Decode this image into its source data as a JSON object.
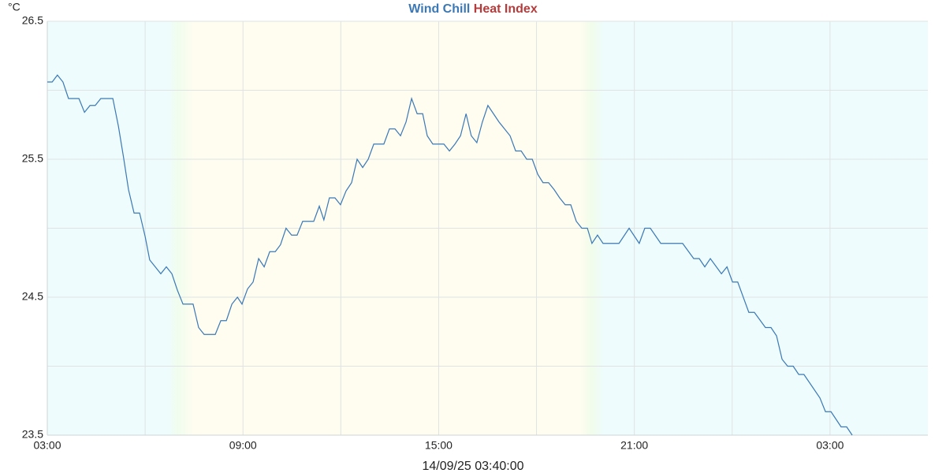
{
  "chart_data": {
    "type": "line",
    "y_unit": "°C",
    "footer": "14/09/25 03:40:00",
    "xlim": [
      0,
      27
    ],
    "xticks": [
      {
        "value": 0,
        "label": "03:00"
      },
      {
        "value": 6,
        "label": "09:00"
      },
      {
        "value": 12,
        "label": "15:00"
      },
      {
        "value": 18,
        "label": "21:00"
      },
      {
        "value": 24,
        "label": "03:00"
      }
    ],
    "minor_xticks": [
      3,
      9,
      15,
      21
    ],
    "ylim": [
      23.5,
      26.5
    ],
    "yticks": [
      23.5,
      24.5,
      25.5,
      26.5
    ],
    "minor_yticks": [
      24,
      25,
      26
    ],
    "grid": true,
    "x": [
      0,
      0.15,
      0.31,
      0.48,
      0.65,
      0.97,
      1.14,
      1.31,
      1.47,
      1.64,
      2.01,
      2.18,
      2.34,
      2.49,
      2.66,
      2.83,
      3.0,
      3.14,
      3.31,
      3.48,
      3.65,
      3.82,
      3.99,
      4.16,
      4.47,
      4.64,
      4.81,
      5.15,
      5.32,
      5.49,
      5.66,
      5.83,
      5.97,
      6.14,
      6.31,
      6.48,
      6.65,
      6.82,
      6.99,
      7.15,
      7.32,
      7.49,
      7.66,
      7.83,
      8.17,
      8.34,
      8.48,
      8.65,
      8.82,
      8.99,
      9.16,
      9.33,
      9.5,
      9.67,
      9.84,
      10.01,
      10.32,
      10.49,
      10.66,
      10.83,
      11.0,
      11.17,
      11.34,
      11.51,
      11.65,
      11.82,
      12.16,
      12.33,
      12.5,
      12.67,
      12.84,
      13.0,
      13.17,
      13.34,
      13.51,
      13.68,
      13.85,
      14.02,
      14.19,
      14.36,
      14.53,
      14.7,
      14.87,
      15.04,
      15.2,
      15.37,
      15.54,
      15.71,
      15.88,
      16.05,
      16.22,
      16.39,
      16.56,
      16.7,
      16.87,
      17.04,
      17.53,
      17.84,
      18.15,
      18.32,
      18.49,
      18.81,
      19.48,
      19.82,
      19.99,
      20.16,
      20.33,
      20.67,
      20.84,
      21.01,
      21.17,
      21.51,
      21.68,
      22.02,
      22.19,
      22.36,
      22.53,
      22.7,
      22.87,
      23.04,
      23.2,
      23.69,
      23.86,
      24.03,
      24.34,
      24.51,
      24.68
    ],
    "series": [
      {
        "name": "Wind Chill",
        "color": "#3b78b5",
        "values": [
          26.06,
          26.06,
          26.11,
          26.06,
          25.94,
          25.94,
          25.84,
          25.89,
          25.89,
          25.94,
          25.94,
          25.74,
          25.51,
          25.28,
          25.11,
          25.11,
          24.94,
          24.77,
          24.72,
          24.67,
          24.72,
          24.67,
          24.55,
          24.45,
          24.45,
          24.28,
          24.23,
          24.23,
          24.33,
          24.33,
          24.45,
          24.5,
          24.45,
          24.56,
          24.61,
          24.78,
          24.72,
          24.83,
          24.83,
          24.88,
          25.0,
          24.95,
          24.95,
          25.05,
          25.05,
          25.16,
          25.06,
          25.22,
          25.22,
          25.17,
          25.27,
          25.33,
          25.5,
          25.44,
          25.5,
          25.61,
          25.61,
          25.72,
          25.72,
          25.67,
          25.77,
          25.94,
          25.83,
          25.83,
          25.67,
          25.61,
          25.61,
          25.56,
          25.61,
          25.67,
          25.83,
          25.67,
          25.62,
          25.77,
          25.89,
          25.83,
          25.77,
          25.72,
          25.67,
          25.56,
          25.56,
          25.5,
          25.5,
          25.39,
          25.33,
          25.33,
          25.28,
          25.22,
          25.17,
          25.17,
          25.05,
          25.0,
          25.0,
          24.89,
          24.95,
          24.89,
          24.89,
          25.0,
          24.89,
          25.0,
          25.0,
          24.89,
          24.89,
          24.78,
          24.78,
          24.72,
          24.78,
          24.67,
          24.72,
          24.61,
          24.61,
          24.39,
          24.39,
          24.28,
          24.28,
          24.22,
          24.05,
          24.0,
          24.0,
          23.94,
          23.94,
          23.77,
          23.67,
          23.67,
          23.56,
          23.56,
          23.5
        ]
      },
      {
        "name": "Heat Index",
        "color": "#b43c3c",
        "values": [
          null,
          null,
          null,
          null,
          null,
          null,
          null,
          null,
          null,
          null,
          null,
          null,
          null,
          null,
          null,
          null,
          null,
          null,
          null,
          null,
          null,
          null,
          null,
          null,
          null,
          null,
          null,
          null,
          null,
          null,
          null,
          null,
          null,
          null,
          null,
          null,
          null,
          null,
          null,
          null,
          null,
          null,
          null,
          null,
          null,
          null,
          null,
          null,
          null,
          null,
          null,
          null,
          null,
          null,
          null,
          null,
          null,
          null,
          null,
          null,
          null,
          null,
          null,
          null,
          null,
          null,
          null,
          null,
          null,
          null,
          null,
          null,
          null,
          null,
          null,
          null,
          null,
          null,
          null,
          null,
          null,
          null,
          null,
          null,
          null,
          null,
          null,
          null,
          null,
          null,
          null,
          null,
          null,
          null,
          null,
          null,
          null,
          null,
          null,
          null,
          null,
          null,
          null,
          null,
          null,
          null,
          null,
          null,
          null,
          null,
          null,
          null,
          null,
          null,
          null,
          null,
          null,
          null,
          null,
          null,
          null,
          null,
          null,
          null,
          null,
          null,
          null
        ]
      }
    ]
  }
}
